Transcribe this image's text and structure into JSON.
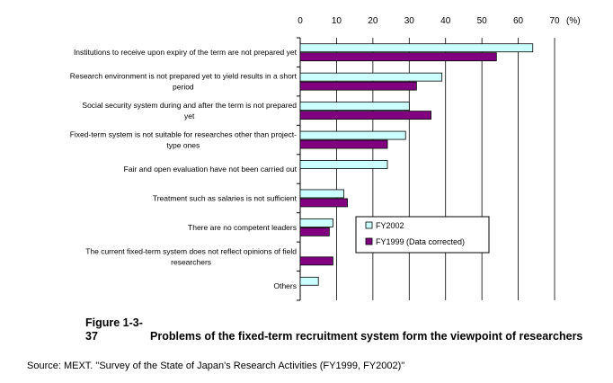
{
  "chart_data": {
    "type": "bar",
    "orientation": "horizontal",
    "xlim": [
      0,
      70
    ],
    "x_ticks": [
      "0",
      "10",
      "20",
      "30",
      "40",
      "50",
      "60",
      "70"
    ],
    "x_unit": "(%)",
    "grid": true,
    "legend_position": "lower-right",
    "categories": [
      [
        "Institutions to receive upon expiry of the term are not prepared yet"
      ],
      [
        "Research environment is not prepared yet to yield results in a short",
        "period"
      ],
      [
        "Social security system during and after the term is not prepared",
        "yet"
      ],
      [
        "Fixed-term system is not suitable for researches other than project-",
        "type ones"
      ],
      [
        "Fair and open evaluation have not been carried out"
      ],
      [
        "Treatment such as salaries is not sufficient"
      ],
      [
        "There are no competent leaders"
      ],
      [
        "The current fixed-term system does not reflect opinions of field",
        "researchers"
      ],
      [
        "Others"
      ]
    ],
    "series": [
      {
        "name": "FY2002",
        "color": "#ccffff",
        "values": [
          64,
          39,
          30,
          29,
          24,
          12,
          9,
          null,
          5
        ]
      },
      {
        "name": "FY1999 (Data corrected)",
        "color": "#800080",
        "values": [
          54,
          32,
          36,
          24,
          null,
          13,
          8,
          9,
          null
        ]
      }
    ]
  },
  "caption": {
    "figure_no": "Figure 1-3-37",
    "title": "Problems of the fixed-term recruitment system form the viewpoint of researchers"
  },
  "source": "Source: MEXT. \"Survey of the State of Japan's Research Activities (FY1999, FY2002)\""
}
